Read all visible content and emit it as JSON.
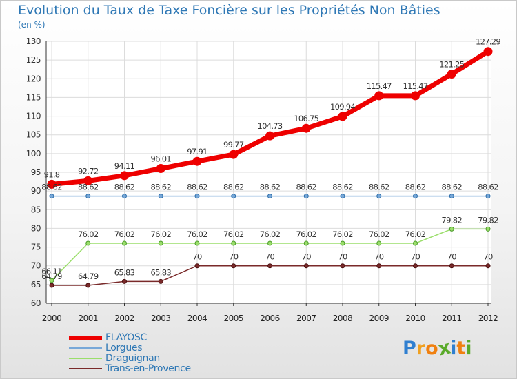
{
  "chart_data": {
    "type": "line",
    "title": "Evolution du Taux de Taxe Foncière sur les Propriétés Non Bâties",
    "ylabel": "(en %)",
    "xlabel": "",
    "categories": [
      "2000",
      "2001",
      "2002",
      "2003",
      "2004",
      "2005",
      "2006",
      "2007",
      "2008",
      "2009",
      "2010",
      "2011",
      "2012"
    ],
    "ylim": [
      60,
      130
    ],
    "yticks": [
      60,
      65,
      70,
      75,
      80,
      85,
      90,
      95,
      100,
      105,
      110,
      115,
      120,
      125,
      130
    ],
    "grid": true,
    "legend_position": "bottom-left",
    "series": [
      {
        "name": "FLAYOSC",
        "color": "#ee0000",
        "values": [
          91.8,
          92.72,
          94.11,
          96.01,
          97.91,
          99.77,
          104.73,
          106.75,
          109.94,
          115.47,
          115.47,
          121.25,
          127.29
        ],
        "labels": [
          "91.8",
          "92.72",
          "94.11",
          "96.01",
          "97.91",
          "99.77",
          "104.73",
          "106.75",
          "109.94",
          "115.47",
          "115.47",
          "121.25",
          "127.29"
        ]
      },
      {
        "name": "Lorgues",
        "color": "#78a8d8",
        "values": [
          88.62,
          88.62,
          88.62,
          88.62,
          88.62,
          88.62,
          88.62,
          88.62,
          88.62,
          88.62,
          88.62,
          88.62,
          88.62
        ],
        "labels": [
          "88.62",
          "88.62",
          "88.62",
          "88.62",
          "88.62",
          "88.62",
          "88.62",
          "88.62",
          "88.62",
          "88.62",
          "88.62",
          "88.62",
          "88.62"
        ]
      },
      {
        "name": "Draguignan",
        "color": "#9ade6a",
        "values": [
          66.11,
          76.02,
          76.02,
          76.02,
          76.02,
          76.02,
          76.02,
          76.02,
          76.02,
          76.02,
          76.02,
          79.82,
          79.82
        ],
        "labels": [
          "66.11",
          "76.02",
          "76.02",
          "76.02",
          "76.02",
          "76.02",
          "76.02",
          "76.02",
          "76.02",
          "76.02",
          "76.02",
          "79.82",
          "79.82"
        ]
      },
      {
        "name": "Trans-en-Provence",
        "color": "#7a2a2a",
        "values": [
          64.79,
          64.79,
          65.83,
          65.83,
          70,
          70,
          70,
          70,
          70,
          70,
          70,
          70,
          70
        ],
        "labels": [
          "64.79",
          "64.79",
          "65.83",
          "65.83",
          "70",
          "70",
          "70",
          "70",
          "70",
          "70",
          "70",
          "70",
          "70"
        ]
      }
    ]
  },
  "logo": {
    "text": "Proxiti",
    "letter_colors": [
      "#2f7fd0",
      "#f0a020",
      "#f08010",
      "#5aaa2a",
      "#2f7fd0",
      "#f08010",
      "#5aaa2a"
    ]
  }
}
